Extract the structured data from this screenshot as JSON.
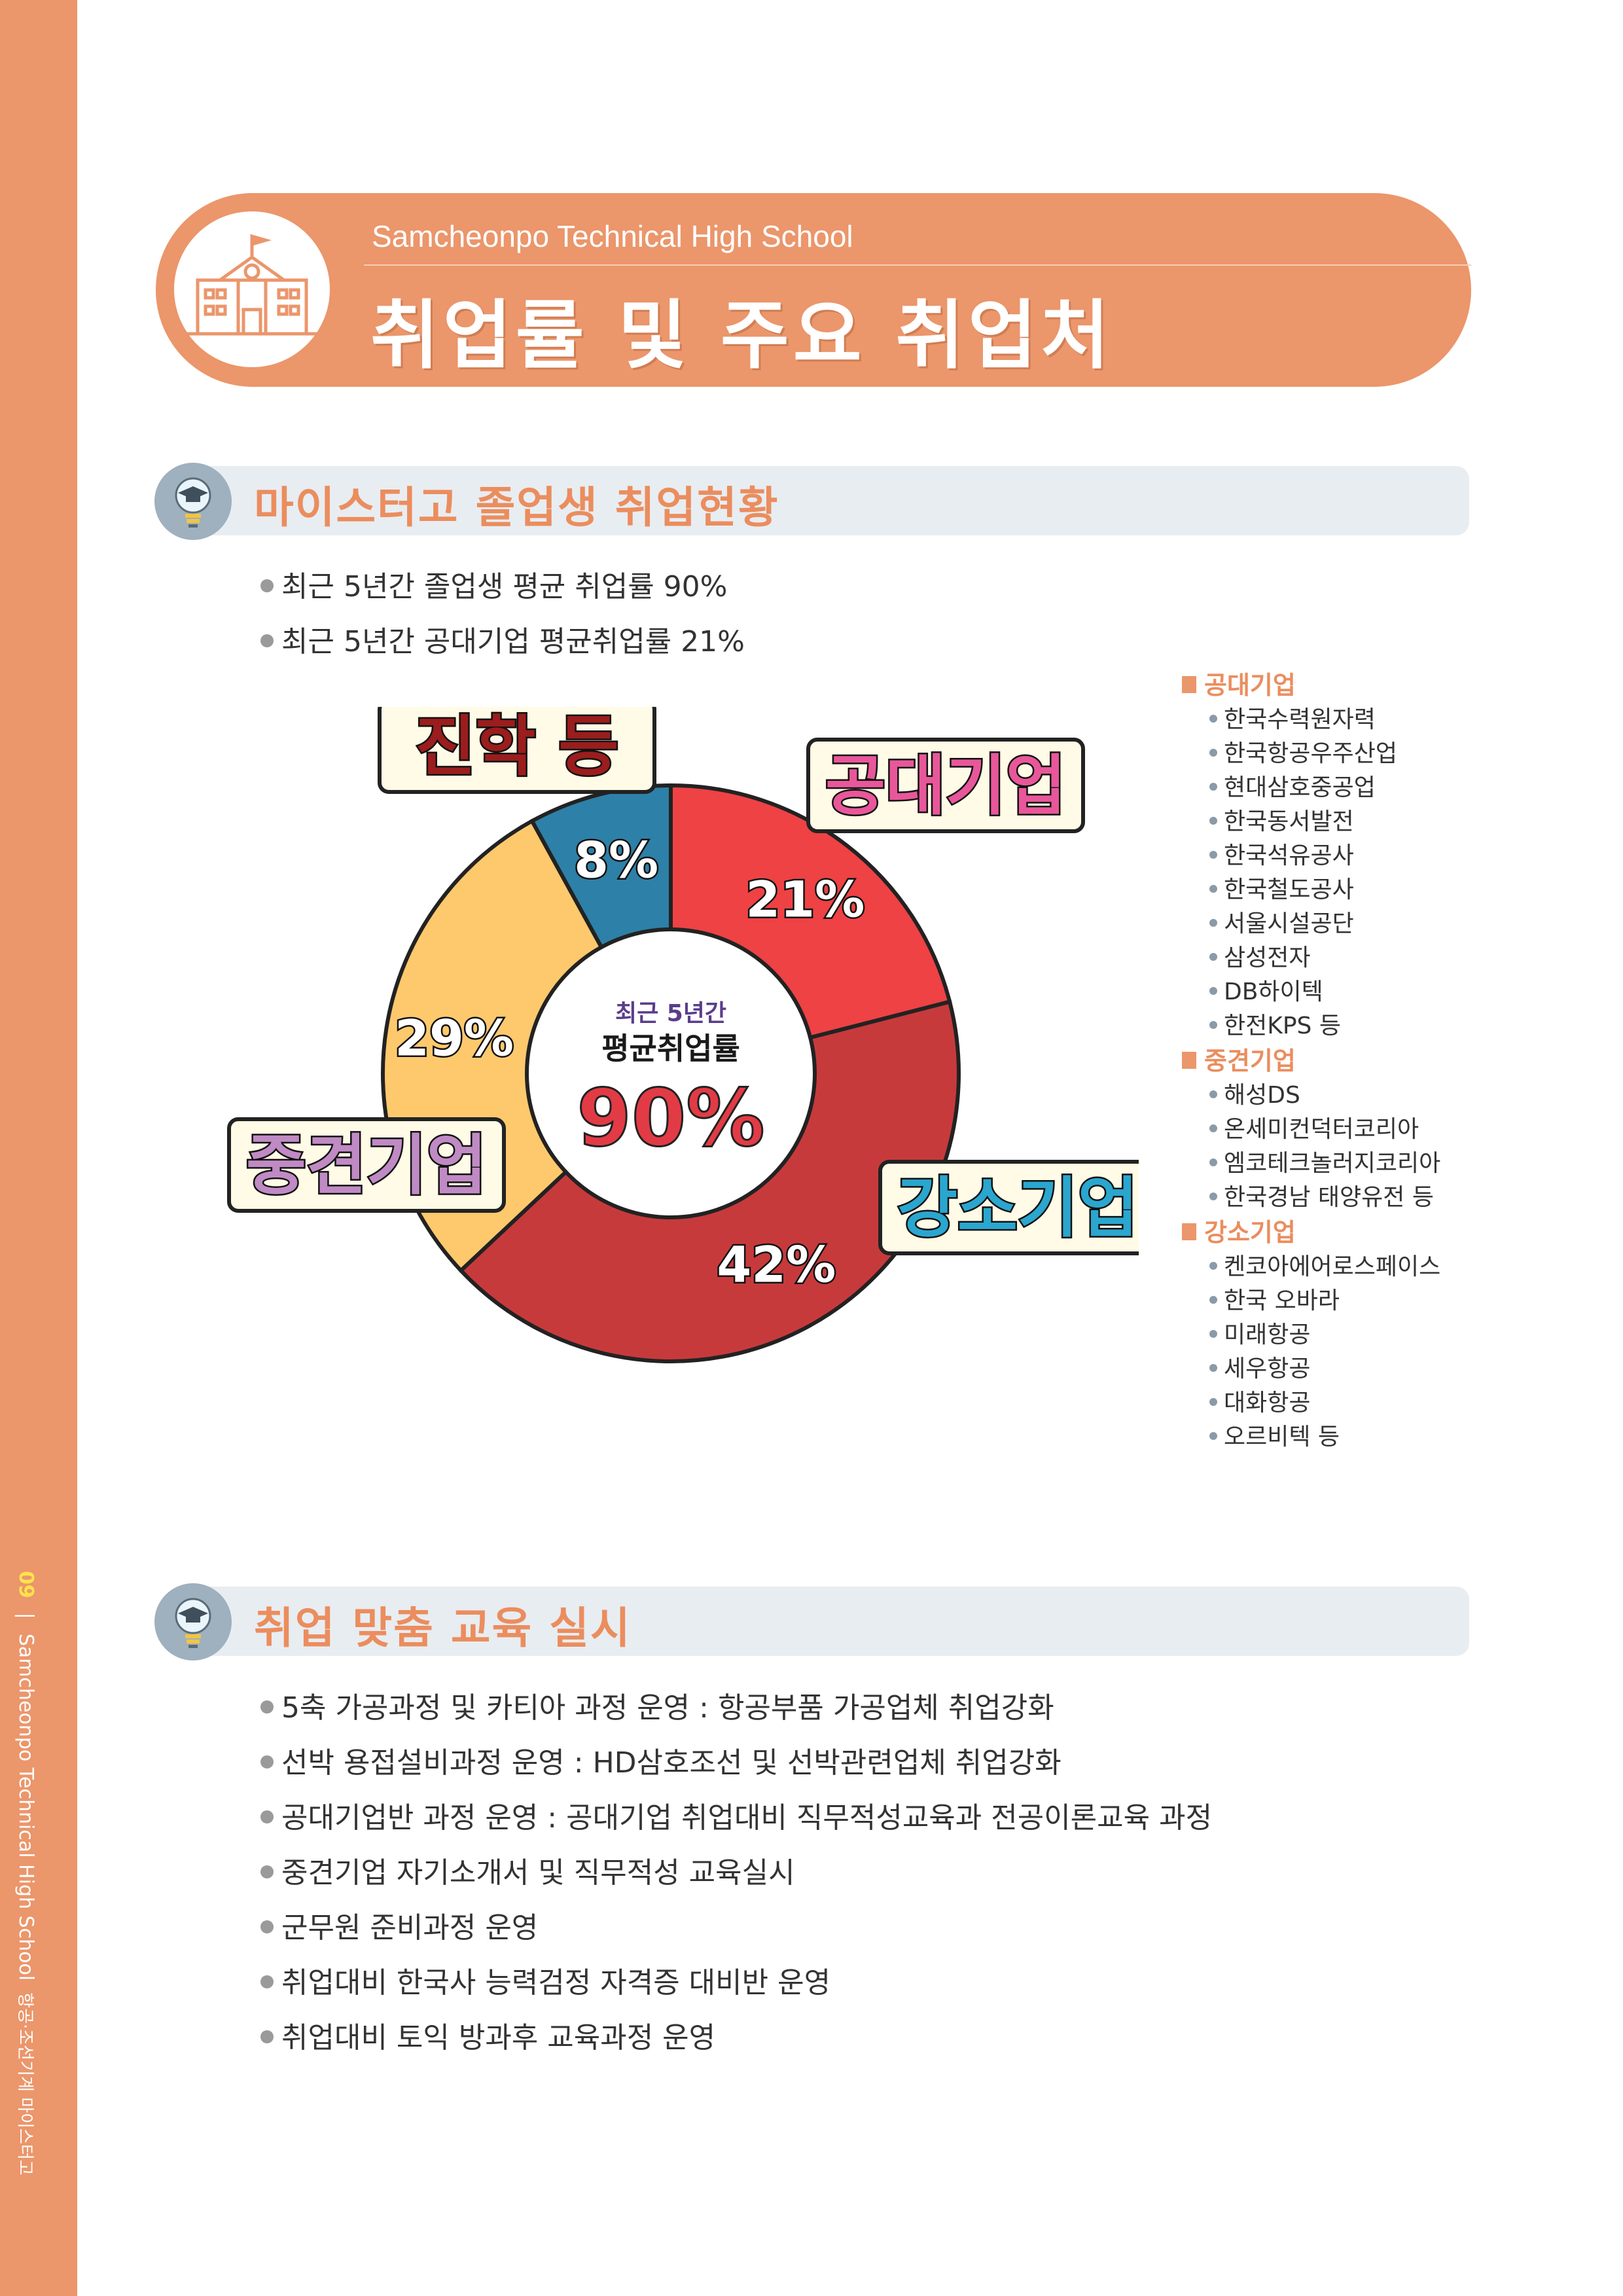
{
  "sidebar": {
    "page_number": "09",
    "separator": "|",
    "school_en": "Samcheonpo Technical High School",
    "school_ko": "항공·조선기계 마이스터고"
  },
  "header": {
    "subtitle": "Samcheonpo Technical High School",
    "title": "취업률 및 주요 취업처",
    "icon": "school-building-icon"
  },
  "section1": {
    "title": "마이스터고 졸업생 취업현황",
    "icon": "lightbulb-graduation-cap-icon",
    "bullets": [
      "최근 5년간 졸업생 평균 취업률 90%",
      "최근 5년간 공대기업 평균취업률 21%"
    ]
  },
  "chart_data": {
    "type": "pie",
    "donut": true,
    "categories": [
      "공대기업",
      "강소기업",
      "중견기업",
      "진학 등"
    ],
    "values": [
      21,
      42,
      29,
      8
    ],
    "value_labels": [
      "21%",
      "42%",
      "29%",
      "8%"
    ],
    "colors": [
      "#ee4245",
      "#c73a3c",
      "#fec96d",
      "#2d80a7"
    ],
    "center_caption_1": "최근 5년간",
    "center_caption_2": "평균취업률",
    "center_value": "90%"
  },
  "chart_label_colors": {
    "공대기업": "#e8579a",
    "강소기업": "#2aa6cf",
    "중견기업": "#c08ac4",
    "진학 등": "#9b1d1d"
  },
  "companies": {
    "groups": [
      {
        "name": "공대기업",
        "items": [
          "한국수력원자력",
          "한국항공우주산업",
          "현대삼호중공업",
          "한국동서발전",
          "한국석유공사",
          "한국철도공사",
          "서울시설공단",
          "삼성전자",
          "DB하이텍",
          "한전KPS 등"
        ]
      },
      {
        "name": "중견기업",
        "items": [
          "해성DS",
          "온세미컨덕터코리아",
          "엠코테크놀러지코리아",
          "한국경남 태양유전 등"
        ]
      },
      {
        "name": "강소기업",
        "items": [
          "켄코아에어로스페이스",
          "한국 오바라",
          "미래항공",
          "세우항공",
          "대화항공",
          "오르비텍 등"
        ]
      }
    ]
  },
  "section2": {
    "title": "취업 맞춤 교육 실시",
    "icon": "lightbulb-graduation-cap-icon",
    "bullets": [
      "5축 가공과정 및 카티아 과정 운영 : 항공부품 가공업체 취업강화",
      "선박 용접설비과정 운영 : HD삼호조선 및 선박관련업체 취업강화",
      "공대기업반 과정 운영 : 공대기업 취업대비 직무적성교육과 전공이론교육 과정",
      "중견기업 자기소개서 및 직무적성 교육실시",
      "군무원 준비과정 운영",
      "취업대비 한국사 능력검정 자격증 대비반 운영",
      "취업대비 토익 방과후 교육과정 운영"
    ]
  },
  "colors": {
    "accent": "#eb966b",
    "section_bar": "#e8edf1",
    "section_title": "#eb8d5e"
  }
}
